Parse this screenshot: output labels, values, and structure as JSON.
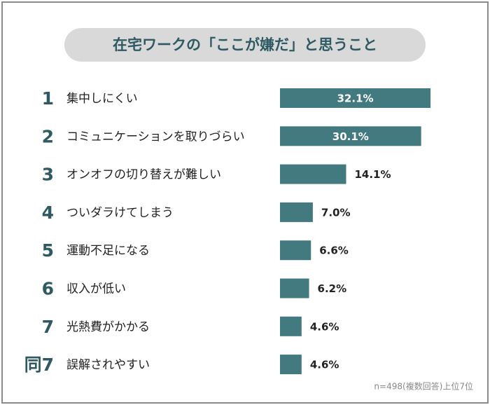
{
  "chart_data": {
    "type": "bar",
    "title": "在宅ワークの「ここが嫌だ」と思うこと",
    "ranks": [
      "1",
      "2",
      "3",
      "4",
      "5",
      "6",
      "7",
      "同7"
    ],
    "categories": [
      "集中しにくい",
      "コミュニケーションを取りづらい",
      "オンオフの切り替えが難しい",
      "ついダラけてしまう",
      "運動不足になる",
      "収入が低い",
      "光熱費がかかる",
      "誤解されやすい"
    ],
    "values": [
      32.1,
      30.1,
      14.1,
      7.0,
      6.6,
      6.2,
      4.6,
      4.6
    ],
    "value_labels": [
      "32.1%",
      "30.1%",
      "14.1%",
      "7.0%",
      "6.6%",
      "6.2%",
      "4.6%",
      "4.6%"
    ],
    "color": "#437a80",
    "note": "n=498(複数回答)上位7位"
  }
}
